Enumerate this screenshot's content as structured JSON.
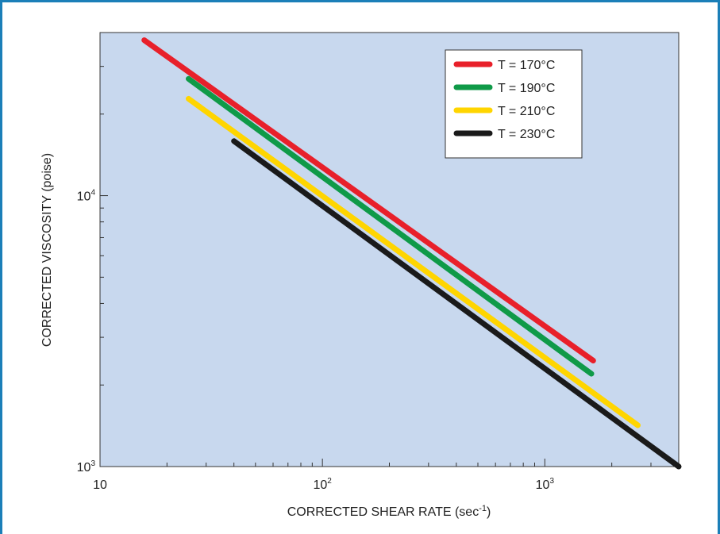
{
  "chart_data": {
    "type": "line",
    "x_scale": "log",
    "y_scale": "log",
    "xlim": [
      10,
      4000
    ],
    "ylim": [
      1000,
      40000
    ],
    "xlabel": "CORRECTED SHEAR RATE (sec",
    "xlabel_sup": "-1",
    "xlabel_tail": ")",
    "ylabel": "CORRECTED VISCOSITY (poise)",
    "x_ticks": [
      {
        "base": "10",
        "exp": "",
        "value": 10
      },
      {
        "base": "10",
        "exp": "2",
        "value": 100
      },
      {
        "base": "10",
        "exp": "3",
        "value": 1000
      }
    ],
    "y_ticks": [
      {
        "base": "10",
        "exp": "3",
        "value": 1000
      },
      {
        "base": "10",
        "exp": "4",
        "value": 10000
      }
    ],
    "legend_position": "top-right",
    "grid": false,
    "series": [
      {
        "name": "T = 170°C",
        "color": "#e8202a",
        "x": [
          15.8,
          1650
        ],
        "y": [
          37500,
          2460
        ]
      },
      {
        "name": "T = 190°C",
        "color": "#0f9a48",
        "x": [
          25,
          1620
        ],
        "y": [
          27000,
          2200
        ]
      },
      {
        "name": "T = 210°C",
        "color": "#ffd500",
        "x": [
          25,
          2620
        ],
        "y": [
          22800,
          1420
        ]
      },
      {
        "name": "T = 230°C",
        "color": "#1a1a1a",
        "x": [
          40,
          4000
        ],
        "y": [
          15900,
          1000
        ]
      }
    ]
  },
  "colors": {
    "frame_border": "#1b7fb8",
    "plot_background": "#c8d8ee"
  }
}
